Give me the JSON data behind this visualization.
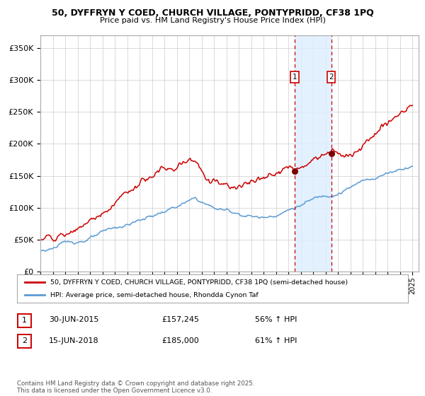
{
  "title_line1": "50, DYFFRYN Y COED, CHURCH VILLAGE, PONTYPRIDD, CF38 1PQ",
  "title_line2": "Price paid vs. HM Land Registry's House Price Index (HPI)",
  "red_label": "50, DYFFRYN Y COED, CHURCH VILLAGE, PONTYPRIDD, CF38 1PQ (semi-detached house)",
  "blue_label": "HPI: Average price, semi-detached house, Rhondda Cynon Taf",
  "marker1_date": "30-JUN-2015",
  "marker1_price": "£157,245",
  "marker1_pct": "56% ↑ HPI",
  "marker2_date": "15-JUN-2018",
  "marker2_price": "£185,000",
  "marker2_pct": "61% ↑ HPI",
  "footer": "Contains HM Land Registry data © Crown copyright and database right 2025.\nThis data is licensed under the Open Government Licence v3.0.",
  "red_color": "#cc0000",
  "blue_color": "#5b9bd5",
  "marker_color": "#7b0000",
  "shade_color": "#ddeeff",
  "grid_color": "#cccccc",
  "bg_color": "#ffffff",
  "ylim": [
    0,
    370000
  ],
  "yticks": [
    0,
    50000,
    100000,
    150000,
    200000,
    250000,
    300000,
    350000
  ],
  "ytick_labels": [
    "£0",
    "£50K",
    "£100K",
    "£150K",
    "£200K",
    "£250K",
    "£300K",
    "£350K"
  ],
  "marker1_val": 157245,
  "marker2_val": 185000,
  "t1": 2015.5,
  "t2": 2018.45
}
